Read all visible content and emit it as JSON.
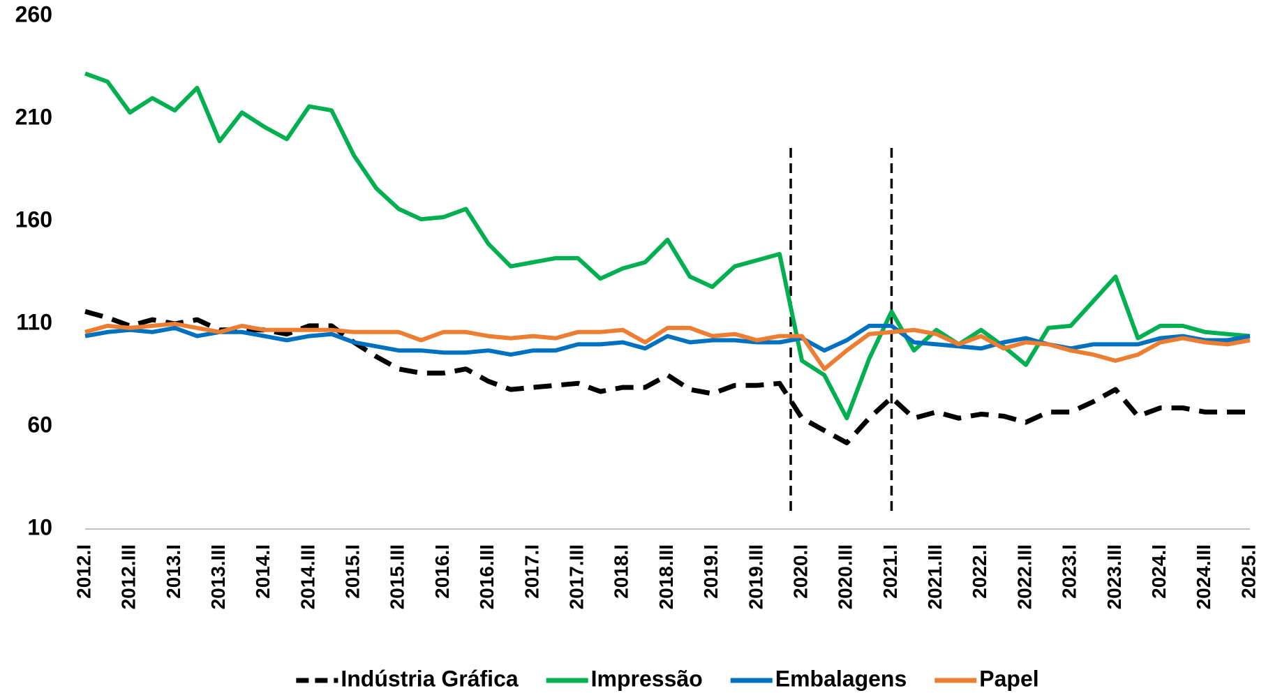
{
  "chart_data": {
    "type": "line",
    "categories": [
      "2012.I",
      null,
      "2012.III",
      null,
      "2013.I",
      null,
      "2013.III",
      null,
      "2014.I",
      null,
      "2014.III",
      null,
      "2015.I",
      null,
      "2015.III",
      null,
      "2016.I",
      null,
      "2016.III",
      null,
      "2017.I",
      null,
      "2017.III",
      null,
      "2018.I",
      null,
      "2018.III",
      null,
      "2019.I",
      null,
      "2019.III",
      null,
      "2020.I",
      null,
      "2020.III",
      null,
      "2021.I",
      null,
      "2021.III",
      null,
      "2022.I",
      null,
      "2022.III",
      null,
      "2023.I",
      null,
      "2023.III",
      null,
      "2024.I",
      null,
      "2024.III",
      null,
      "2025.I"
    ],
    "series": [
      {
        "name": "Indústria Gráfica",
        "color": "#000000",
        "dashed": true,
        "values": [
          116,
          113,
          109,
          112,
          110,
          112,
          107,
          107,
          107,
          105,
          109,
          109,
          101,
          94,
          88,
          86,
          86,
          88,
          82,
          78,
          79,
          80,
          81,
          77,
          79,
          79,
          85,
          78,
          76,
          80,
          80,
          81,
          64,
          58,
          52,
          64,
          74,
          64,
          67,
          64,
          66,
          65,
          62,
          67,
          67,
          72,
          78,
          65,
          69,
          69,
          67,
          67,
          67
        ]
      },
      {
        "name": "Impressão",
        "color": "#00b050",
        "values": [
          232,
          228,
          213,
          220,
          214,
          225,
          199,
          213,
          206,
          200,
          216,
          214,
          192,
          176,
          166,
          161,
          162,
          166,
          149,
          138,
          140,
          142,
          142,
          132,
          137,
          140,
          151,
          133,
          128,
          138,
          141,
          144,
          92,
          85,
          64,
          93,
          116,
          97,
          107,
          100,
          107,
          99,
          90,
          108,
          109,
          121,
          133,
          103,
          109,
          109,
          106,
          105,
          104
        ]
      },
      {
        "name": "Embalagens",
        "color": "#0070c0",
        "values": [
          104,
          106,
          107,
          106,
          108,
          104,
          106,
          106,
          104,
          102,
          104,
          105,
          101,
          99,
          97,
          97,
          96,
          96,
          97,
          95,
          97,
          97,
          100,
          100,
          101,
          98,
          104,
          101,
          102,
          102,
          101,
          101,
          103,
          97,
          102,
          109,
          109,
          101,
          100,
          99,
          98,
          101,
          103,
          100,
          98,
          100,
          100,
          100,
          103,
          104,
          102,
          102,
          104
        ]
      },
      {
        "name": "Papel",
        "color": "#ed7d31",
        "values": [
          106,
          109,
          108,
          109,
          110,
          108,
          106,
          109,
          107,
          107,
          107,
          107,
          106,
          106,
          106,
          102,
          106,
          106,
          104,
          103,
          104,
          103,
          106,
          106,
          107,
          101,
          108,
          108,
          104,
          105,
          102,
          104,
          104,
          88,
          97,
          105,
          106,
          107,
          105,
          100,
          104,
          98,
          101,
          100,
          97,
          95,
          92,
          95,
          101,
          103,
          101,
          100,
          102
        ]
      }
    ],
    "ylim": [
      10,
      260
    ],
    "yticks": [
      10,
      60,
      110,
      160,
      210,
      260
    ],
    "grid": false,
    "legend": "bottom"
  }
}
